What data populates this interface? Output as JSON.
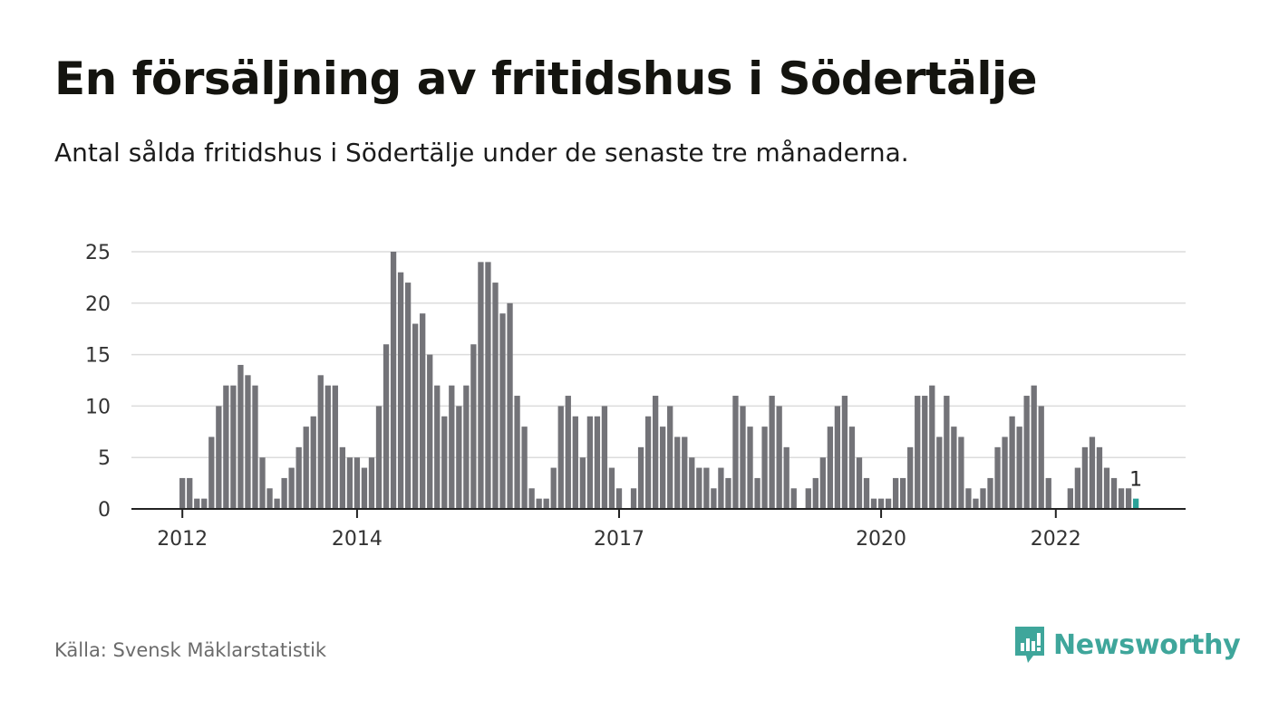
{
  "title": "En försäljning av fritidshus i Södertälje",
  "subtitle": "Antal sålda fritidshus i Södertälje under de senaste tre månaderna.",
  "source": "Källa: Svensk Mäklarstatistik",
  "brand": "Newsworthy",
  "colors": {
    "bar": "#737378",
    "highlight": "#2aa198",
    "grid": "#dcdcdc",
    "axis": "#222222",
    "brand": "#3fa69b"
  },
  "chart_data": {
    "type": "bar",
    "x_start": "2011-01",
    "frequency": "monthly",
    "values": [
      0,
      0,
      0,
      0,
      0,
      0,
      0,
      0,
      0,
      0,
      0,
      0,
      3,
      3,
      1,
      1,
      7,
      10,
      12,
      12,
      14,
      13,
      12,
      5,
      2,
      1,
      3,
      4,
      6,
      8,
      9,
      13,
      12,
      12,
      6,
      5,
      5,
      4,
      5,
      10,
      16,
      25,
      23,
      22,
      18,
      19,
      15,
      12,
      9,
      12,
      10,
      12,
      16,
      24,
      24,
      22,
      19,
      20,
      11,
      8,
      2,
      1,
      1,
      4,
      10,
      11,
      9,
      5,
      9,
      9,
      10,
      4,
      2,
      0,
      2,
      6,
      9,
      11,
      8,
      10,
      7,
      7,
      5,
      4,
      4,
      2,
      4,
      3,
      11,
      10,
      8,
      3,
      8,
      11,
      10,
      6,
      2,
      0,
      2,
      3,
      5,
      8,
      10,
      11,
      8,
      5,
      3,
      1,
      1,
      1,
      3,
      3,
      6,
      11,
      11,
      12,
      7,
      11,
      8,
      7,
      2,
      1,
      2,
      3,
      6,
      7,
      9,
      8,
      11,
      12,
      10,
      3,
      0,
      0,
      2,
      4,
      6,
      7,
      6,
      4,
      3,
      2,
      2,
      1
    ],
    "highlight_last": true,
    "last_value_label": "1",
    "x_ticks": [
      {
        "label": "2012",
        "period": "2012-01"
      },
      {
        "label": "2014",
        "period": "2014-01"
      },
      {
        "label": "2017",
        "period": "2017-01"
      },
      {
        "label": "2020",
        "period": "2020-01"
      },
      {
        "label": "2022",
        "period": "2022-01"
      }
    ],
    "y_ticks": [
      0,
      5,
      10,
      15,
      20,
      25
    ],
    "ylim": [
      0,
      25
    ],
    "grid": true
  }
}
